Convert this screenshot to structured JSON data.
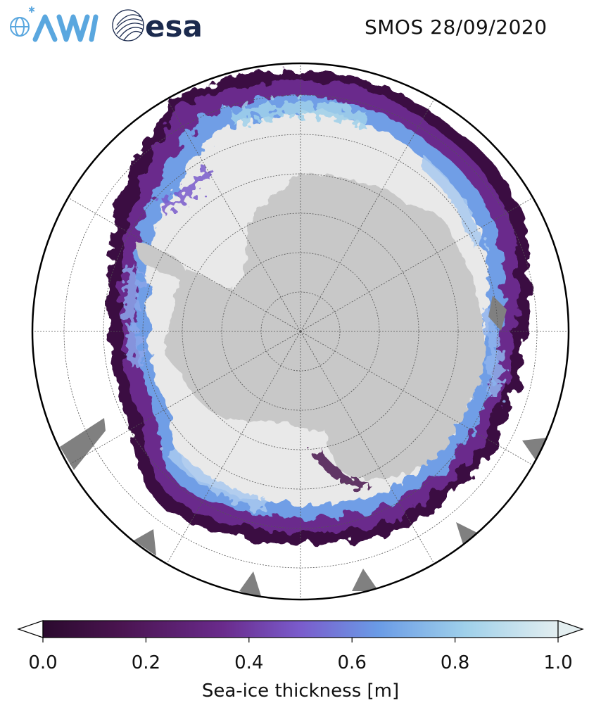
{
  "header": {
    "title": "SMOS 28/09/2020",
    "logos": [
      {
        "name": "AWI",
        "text": "AWI",
        "color": "#5aa7df"
      },
      {
        "name": "esa",
        "text": "esa",
        "color": "#1b2a4e"
      }
    ]
  },
  "map": {
    "projection": "south-polar-stereographic",
    "latitude_circles_deg": [
      -50,
      -60,
      -70,
      -80
    ],
    "meridians_deg": [
      0,
      30,
      60,
      90,
      120,
      150,
      180,
      210,
      240,
      270,
      300,
      330
    ],
    "land_color": "#c8c8c8",
    "ocean_color": "#ffffff",
    "missing_color": "#808080",
    "thick_ice_color": "#e9e9e9"
  },
  "colorbar": {
    "label": "Sea-ice thickness [m]",
    "min": 0.0,
    "max": 1.0,
    "ticks": [
      "0.0",
      "0.2",
      "0.4",
      "0.6",
      "0.8",
      "1.0"
    ],
    "extend": "both",
    "colors": [
      "#2b0a2e",
      "#4a1450",
      "#6a2b8c",
      "#7a5ccc",
      "#6a9be6",
      "#9fd0ea",
      "#e3eef0"
    ]
  }
}
